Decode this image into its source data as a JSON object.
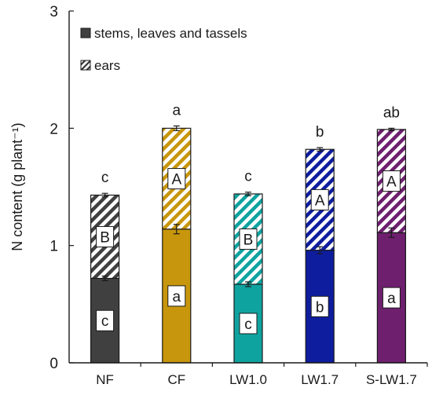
{
  "chart_data": {
    "type": "bar",
    "stacked": true,
    "ylabel": "N content (g plant⁻¹)",
    "ylim": [
      0,
      3
    ],
    "yticks": [
      0,
      1,
      2,
      3
    ],
    "grid": false,
    "legend_position": "top-left",
    "categories": [
      "NF",
      "CF",
      "LW1.0",
      "LW1.7",
      "S-LW1.7"
    ],
    "bar_colors": [
      "#404040",
      "#c8960c",
      "#0fa3a0",
      "#0e1d9e",
      "#6e1f6e"
    ],
    "series": [
      {
        "name": "stems, leaves and tassels",
        "pattern": "solid",
        "values": [
          0.72,
          1.14,
          0.67,
          0.96,
          1.11
        ],
        "errors": [
          0.02,
          0.04,
          0.02,
          0.03,
          0.04
        ],
        "letters": [
          "c",
          "a",
          "c",
          "b",
          "a"
        ]
      },
      {
        "name": "ears",
        "pattern": "hatched",
        "values": [
          0.71,
          0.86,
          0.77,
          0.86,
          0.88
        ],
        "letters": [
          "B",
          "A",
          "B",
          "A",
          "A"
        ]
      }
    ],
    "totals": [
      1.43,
      2.0,
      1.44,
      1.82,
      1.99
    ],
    "total_errors": [
      0.015,
      0.02,
      0.015,
      0.015,
      0.01
    ],
    "total_letters": [
      "c",
      "a",
      "c",
      "b",
      "ab"
    ]
  }
}
